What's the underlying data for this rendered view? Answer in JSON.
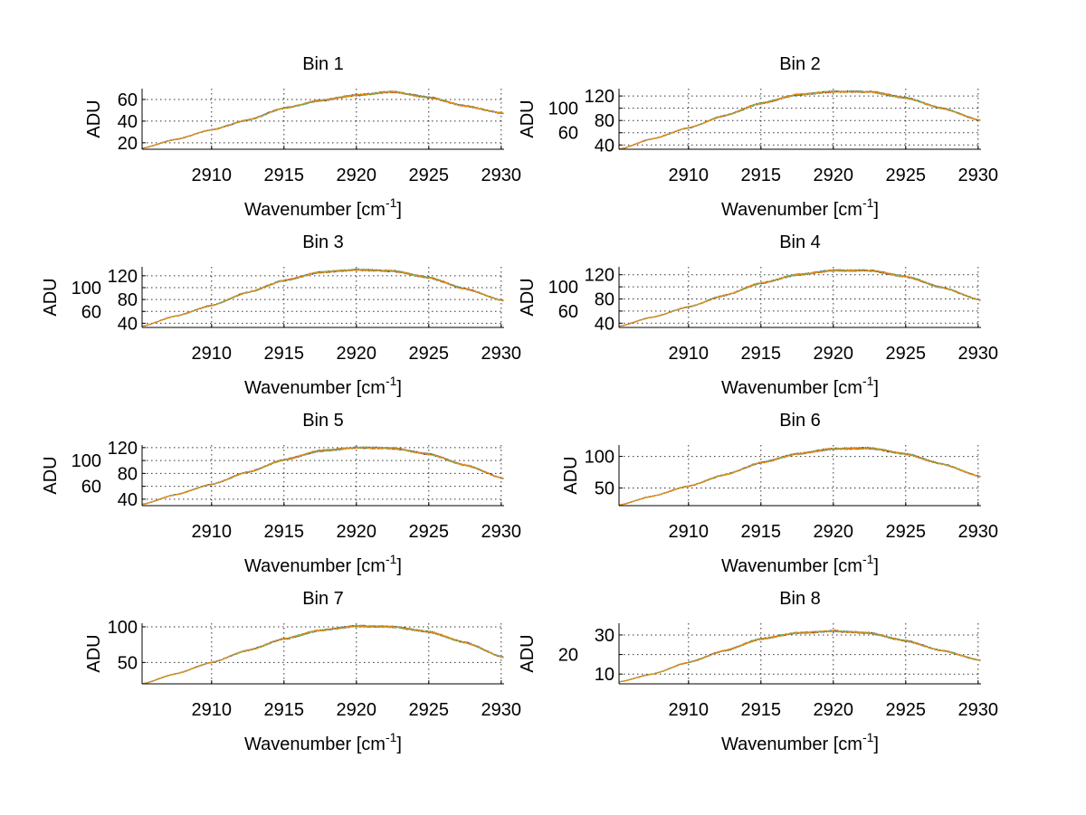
{
  "chart_data": {
    "type": "line",
    "shared": {
      "xlabel_main": "Wavenumber [cm",
      "xlabel_sup": "-1",
      "xlabel_end": "]",
      "ylabel": "ADU",
      "xlim": [
        2905.2,
        2930.2
      ],
      "xticks": [
        2910,
        2915,
        2920,
        2925,
        2930
      ],
      "grid": true,
      "series_colors": [
        "#0000aa",
        "#cc2222",
        "#22aacc",
        "#44aa44",
        "#ff8800"
      ]
    },
    "x": [
      2905.2,
      2907.5,
      2910,
      2912.5,
      2915,
      2917.5,
      2920,
      2922.5,
      2925,
      2927.5,
      2930.2
    ],
    "panels": [
      {
        "title": "Bin 1",
        "ylim": [
          14,
          70
        ],
        "yticks": [
          20,
          40,
          60
        ],
        "y": [
          15,
          23,
          32,
          41,
          52,
          59,
          64,
          67,
          62,
          54,
          47
        ]
      },
      {
        "title": "Bin 2",
        "ylim": [
          33,
          132
        ],
        "yticks": [
          40,
          60,
          80,
          100,
          120
        ],
        "y": [
          33,
          50,
          68,
          88,
          108,
          122,
          127,
          127,
          117,
          100,
          80
        ]
      },
      {
        "title": "Bin 3",
        "ylim": [
          33,
          135
        ],
        "yticks": [
          40,
          60,
          80,
          100,
          120
        ],
        "y": [
          35,
          52,
          70,
          92,
          112,
          126,
          130,
          128,
          117,
          98,
          78
        ]
      },
      {
        "title": "Bin 4",
        "ylim": [
          33,
          133
        ],
        "yticks": [
          40,
          60,
          80,
          100,
          120
        ],
        "y": [
          35,
          50,
          67,
          86,
          106,
          120,
          127,
          127,
          117,
          99,
          78
        ]
      },
      {
        "title": "Bin 5",
        "ylim": [
          30,
          124
        ],
        "yticks": [
          40,
          60,
          80,
          100,
          120
        ],
        "y": [
          32,
          47,
          63,
          82,
          101,
          115,
          120,
          119,
          110,
          93,
          72
        ]
      },
      {
        "title": "Bin 6",
        "ylim": [
          22,
          118
        ],
        "yticks": [
          50,
          100
        ],
        "y": [
          23,
          37,
          53,
          71,
          90,
          104,
          112,
          113,
          104,
          88,
          68
        ]
      },
      {
        "title": "Bin 7",
        "ylim": [
          20,
          105
        ],
        "yticks": [
          50,
          100
        ],
        "y": [
          20,
          34,
          50,
          67,
          83,
          95,
          101,
          100,
          93,
          78,
          57
        ]
      },
      {
        "title": "Bin 8",
        "ylim": [
          5,
          36
        ],
        "yticks": [
          10,
          20,
          30
        ],
        "y": [
          6,
          10,
          16,
          22,
          28,
          31,
          32,
          31,
          27,
          22,
          17
        ]
      }
    ]
  }
}
